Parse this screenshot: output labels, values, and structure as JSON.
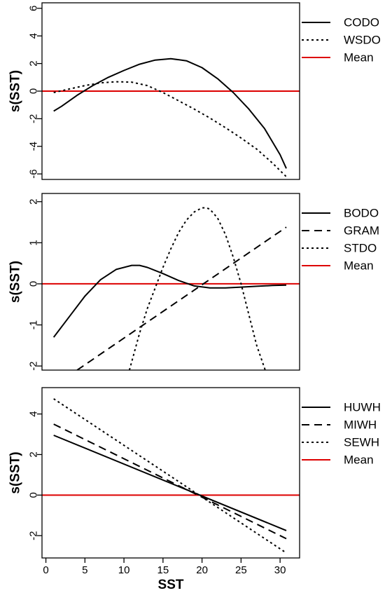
{
  "chart_data": [
    {
      "type": "line",
      "ylabel": "s(SST)",
      "xlim": [
        -0.5,
        32.5
      ],
      "ylim": [
        -6.4,
        6.4
      ],
      "yticks": [
        6,
        4,
        2,
        0,
        -2,
        -4,
        -6
      ],
      "ytick_labels": [
        "6",
        "4",
        "2",
        "0",
        "-2",
        "-4",
        "-6"
      ],
      "mean_value": 0,
      "mean_color": "#dd0000",
      "legend": [
        "CODO",
        "WSDO",
        "Mean"
      ],
      "series": [
        {
          "name": "CODO",
          "style": "solid",
          "color": "#000000",
          "x": [
            1,
            2,
            4,
            6,
            8,
            10,
            12,
            14,
            16,
            18,
            20,
            22,
            24,
            26,
            28,
            30,
            30.8
          ],
          "y": [
            -1.45,
            -1.1,
            -0.3,
            0.4,
            1.0,
            1.5,
            1.95,
            2.25,
            2.35,
            2.2,
            1.7,
            0.9,
            -0.1,
            -1.3,
            -2.7,
            -4.6,
            -5.6
          ]
        },
        {
          "name": "WSDO",
          "style": "dotted",
          "color": "#000000",
          "x": [
            1,
            3,
            5,
            7,
            9,
            11,
            13,
            15,
            17,
            19,
            21,
            23,
            25,
            27,
            29,
            30.8
          ],
          "y": [
            -0.1,
            0.15,
            0.4,
            0.6,
            0.68,
            0.65,
            0.4,
            -0.1,
            -0.7,
            -1.3,
            -1.95,
            -2.65,
            -3.4,
            -4.2,
            -5.2,
            -6.2
          ]
        }
      ]
    },
    {
      "type": "line",
      "ylabel": "s(SST)",
      "xlim": [
        -0.5,
        32.5
      ],
      "ylim": [
        -2.1,
        2.2
      ],
      "yticks": [
        2,
        1,
        0,
        -1,
        -2
      ],
      "ytick_labels": [
        "2",
        "1",
        "0",
        "-1",
        "-2"
      ],
      "mean_value": 0,
      "mean_color": "#dd0000",
      "legend": [
        "BODO",
        "GRAM",
        "STDO",
        "Mean"
      ],
      "series": [
        {
          "name": "BODO",
          "style": "solid",
          "color": "#000000",
          "x": [
            1,
            3,
            5,
            7,
            9,
            11,
            12,
            13,
            15,
            17,
            19,
            21,
            23,
            25,
            27,
            29,
            30.8
          ],
          "y": [
            -1.3,
            -0.8,
            -0.3,
            0.1,
            0.35,
            0.45,
            0.45,
            0.4,
            0.25,
            0.08,
            -0.05,
            -0.1,
            -0.1,
            -0.08,
            -0.06,
            -0.04,
            -0.03
          ]
        },
        {
          "name": "GRAM",
          "style": "dashed",
          "color": "#000000",
          "x": [
            4,
            30.8
          ],
          "y": [
            -2.1,
            1.38
          ]
        },
        {
          "name": "STDO",
          "style": "dotted",
          "color": "#000000",
          "x": [
            10.7,
            12,
            13,
            14,
            15,
            16,
            17,
            18,
            19,
            20,
            20.5,
            21,
            22,
            23,
            24,
            25,
            26,
            27,
            28.1
          ],
          "y": [
            -2.1,
            -1.2,
            -0.6,
            -0.1,
            0.4,
            0.85,
            1.25,
            1.55,
            1.75,
            1.85,
            1.85,
            1.82,
            1.6,
            1.2,
            0.65,
            0.0,
            -0.75,
            -1.5,
            -2.1
          ]
        }
      ]
    },
    {
      "type": "line",
      "xlabel": "SST",
      "ylabel": "s(SST)",
      "xlim": [
        -0.5,
        32.5
      ],
      "ylim": [
        -3.1,
        5.3
      ],
      "yticks": [
        4,
        2,
        0,
        -2
      ],
      "ytick_labels": [
        "4",
        "2",
        "0",
        "-2"
      ],
      "xticks": [
        0,
        5,
        10,
        15,
        20,
        25,
        30
      ],
      "xtick_labels": [
        "0",
        "5",
        "10",
        "15",
        "20",
        "25",
        "30"
      ],
      "mean_value": 0,
      "mean_color": "#dd0000",
      "legend": [
        "HUWH",
        "MIWH",
        "SEWH",
        "Mean"
      ],
      "series": [
        {
          "name": "HUWH",
          "style": "solid",
          "color": "#000000",
          "x": [
            1,
            30.8
          ],
          "y": [
            2.95,
            -1.75
          ]
        },
        {
          "name": "MIWH",
          "style": "dashed",
          "color": "#000000",
          "x": [
            1,
            30.8
          ],
          "y": [
            3.5,
            -2.15
          ]
        },
        {
          "name": "SEWH",
          "style": "dotted",
          "color": "#000000",
          "x": [
            1,
            30.8
          ],
          "y": [
            4.75,
            -2.85
          ]
        }
      ]
    }
  ]
}
